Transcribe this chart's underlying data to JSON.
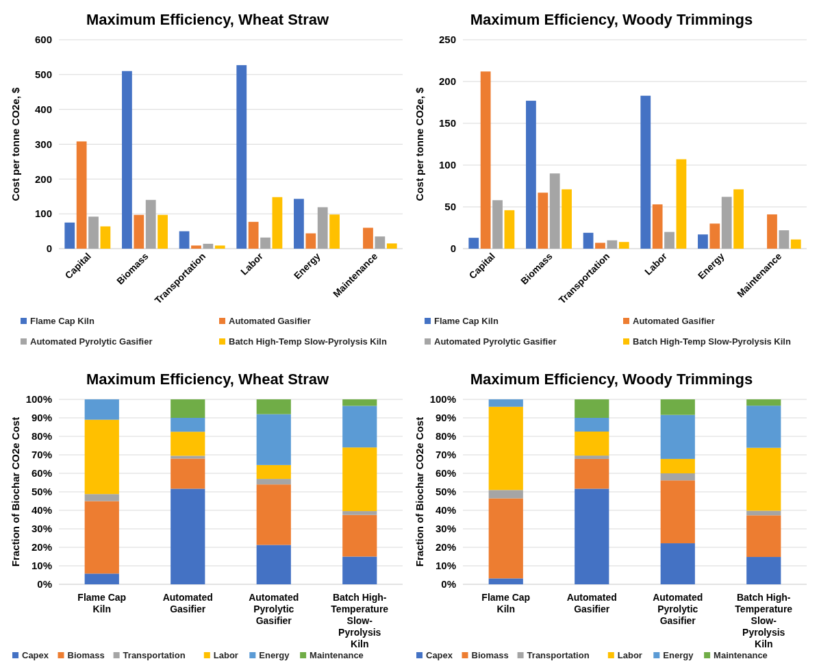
{
  "chart_data": [
    {
      "type": "bar",
      "title": "Maximum Efficiency, Wheat Straw",
      "ylabel": "Cost per tonne CO2e, $",
      "categories": [
        "Capital",
        "Biomass",
        "Transportation",
        "Labor",
        "Energy",
        "Maintenance"
      ],
      "series": [
        {
          "name": "Flame Cap Kiln",
          "color": "#4472c4",
          "values": [
            75,
            510,
            50,
            527,
            143,
            0
          ]
        },
        {
          "name": "Automated Gasifier",
          "color": "#ed7d31",
          "values": [
            308,
            97,
            9,
            77,
            44,
            60
          ]
        },
        {
          "name": "Automated Pyrolytic Gasifier",
          "color": "#a5a5a5",
          "values": [
            92,
            140,
            14,
            32,
            119,
            35
          ]
        },
        {
          "name": "Batch High-Temp Slow-Pyrolysis Kiln",
          "color": "#ffc000",
          "values": [
            64,
            97,
            9,
            148,
            98,
            15
          ]
        }
      ],
      "ylim": [
        0,
        600
      ],
      "yticks": [
        0,
        100,
        200,
        300,
        400,
        500,
        600
      ],
      "grid": "y",
      "legend": "bottom"
    },
    {
      "type": "bar",
      "title": "Maximum Efficiency, Woody Trimmings",
      "ylabel": "Cost per tonne CO2e, $",
      "categories": [
        "Capital",
        "Biomass",
        "Transportation",
        "Labor",
        "Energy",
        "Maintenance"
      ],
      "series": [
        {
          "name": "Flame Cap Kiln",
          "color": "#4472c4",
          "values": [
            13,
            177,
            19,
            183,
            17,
            0
          ]
        },
        {
          "name": "Automated Gasifier",
          "color": "#ed7d31",
          "values": [
            212,
            67,
            7,
            53,
            30,
            41
          ]
        },
        {
          "name": "Automated Pyrolytic Gasifier",
          "color": "#a5a5a5",
          "values": [
            58,
            90,
            10,
            20,
            62,
            22
          ]
        },
        {
          "name": "Batch High-Temp Slow-Pyrolysis Kiln",
          "color": "#ffc000",
          "values": [
            46,
            71,
            8,
            107,
            71,
            11
          ]
        }
      ],
      "ylim": [
        0,
        250
      ],
      "yticks": [
        0,
        50,
        100,
        150,
        200,
        250
      ],
      "grid": "y",
      "legend": "bottom"
    },
    {
      "type": "bar",
      "stacked": true,
      "title": "Maximum Efficiency, Wheat Straw",
      "ylabel": "Fraction of Biochar CO2e Cost",
      "categories": [
        "Flame Cap Kiln",
        "Automated Gasifier",
        "Automated Pyrolytic Gasifier",
        "Batch High-Temperature Slow-Pyrolysis Kiln"
      ],
      "series": [
        {
          "name": "Capex",
          "color": "#4472c4",
          "values": [
            5.8,
            51.7,
            21.3,
            15
          ]
        },
        {
          "name": "Biomass",
          "color": "#ed7d31",
          "values": [
            39.2,
            16.3,
            32.7,
            22.5
          ]
        },
        {
          "name": "Transportation",
          "color": "#a5a5a5",
          "values": [
            3.8,
            1.5,
            3,
            2.1
          ]
        },
        {
          "name": "Labor",
          "color": "#ffc000",
          "values": [
            40.2,
            13,
            7.5,
            34.4
          ]
        },
        {
          "name": "Energy",
          "color": "#5b9bd5",
          "values": [
            11,
            7.5,
            27.5,
            22.5
          ]
        },
        {
          "name": "Maintenance",
          "color": "#70ad47",
          "values": [
            0,
            10,
            8,
            3.5
          ]
        }
      ],
      "ylim": [
        0,
        100
      ],
      "yticks": [
        {
          "value": 0,
          "label": "0%"
        },
        {
          "value": 10,
          "label": "10%"
        },
        {
          "value": 20,
          "label": "20%"
        },
        {
          "value": 30,
          "label": "30%"
        },
        {
          "value": 40,
          "label": "40%"
        },
        {
          "value": 50,
          "label": "50%"
        },
        {
          "value": 60,
          "label": "60%"
        },
        {
          "value": 70,
          "label": "70%"
        },
        {
          "value": 80,
          "label": "80%"
        },
        {
          "value": 90,
          "label": "90%"
        },
        {
          "value": 100,
          "label": "100%"
        }
      ],
      "grid": "y",
      "legend": "bottom"
    },
    {
      "type": "bar",
      "stacked": true,
      "title": "Maximum Efficiency, Woody Trimmings",
      "ylabel": "Fraction of Biochar CO2e Cost",
      "categories": [
        "Flame Cap Kiln",
        "Automated Gasifier",
        "Automated Pyrolytic Gasifier",
        "Batch High-Temperature Slow-Pyrolysis Kiln"
      ],
      "series": [
        {
          "name": "Capex",
          "color": "#4472c4",
          "values": [
            3.2,
            51.7,
            22.2,
            14.8
          ]
        },
        {
          "name": "Biomass",
          "color": "#ed7d31",
          "values": [
            43.3,
            16.1,
            34,
            22.5
          ]
        },
        {
          "name": "Transportation",
          "color": "#a5a5a5",
          "values": [
            4.5,
            1.8,
            3.8,
            2.5
          ]
        },
        {
          "name": "Labor",
          "color": "#ffc000",
          "values": [
            45,
            13,
            7.8,
            34
          ]
        },
        {
          "name": "Energy",
          "color": "#5b9bd5",
          "values": [
            4,
            7.4,
            23.8,
            22.8
          ]
        },
        {
          "name": "Maintenance",
          "color": "#70ad47",
          "values": [
            0,
            10,
            8.4,
            3.4
          ]
        }
      ],
      "ylim": [
        0,
        100
      ],
      "yticks": [
        {
          "value": 0,
          "label": "0%"
        },
        {
          "value": 10,
          "label": "10%"
        },
        {
          "value": 20,
          "label": "20%"
        },
        {
          "value": 30,
          "label": "30%"
        },
        {
          "value": 40,
          "label": "40%"
        },
        {
          "value": 50,
          "label": "50%"
        },
        {
          "value": 60,
          "label": "60%"
        },
        {
          "value": 70,
          "label": "70%"
        },
        {
          "value": 80,
          "label": "80%"
        },
        {
          "value": 90,
          "label": "90%"
        },
        {
          "value": 100,
          "label": "100%"
        }
      ],
      "grid": "y",
      "legend": "bottom"
    }
  ]
}
